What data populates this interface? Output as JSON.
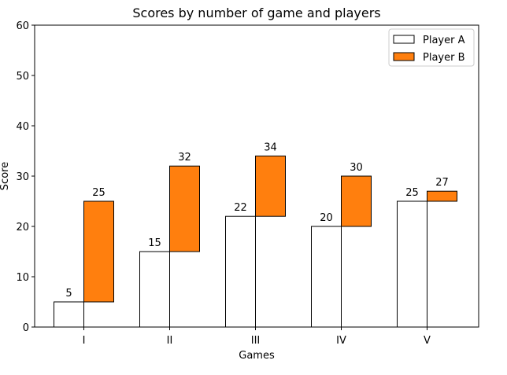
{
  "chart_data": {
    "type": "bar",
    "title": "Scores by number of game and players",
    "xlabel": "Games",
    "ylabel": "Score",
    "categories": [
      "I",
      "II",
      "III",
      "IV",
      "V"
    ],
    "ylim": [
      0,
      60
    ],
    "yticks": [
      0,
      10,
      20,
      30,
      40,
      50,
      60
    ],
    "stacked": true,
    "grid": false,
    "legend_position": "top-right",
    "series": [
      {
        "name": "Player A",
        "values": [
          5,
          15,
          22,
          20,
          25
        ],
        "color": "#ffffff",
        "edgecolor": "#000000",
        "offset": "left"
      },
      {
        "name": "Player B",
        "values": [
          25,
          32,
          34,
          30,
          27
        ],
        "color": "#ff7f0e",
        "edgecolor": "#000000",
        "offset": "right"
      }
    ]
  }
}
